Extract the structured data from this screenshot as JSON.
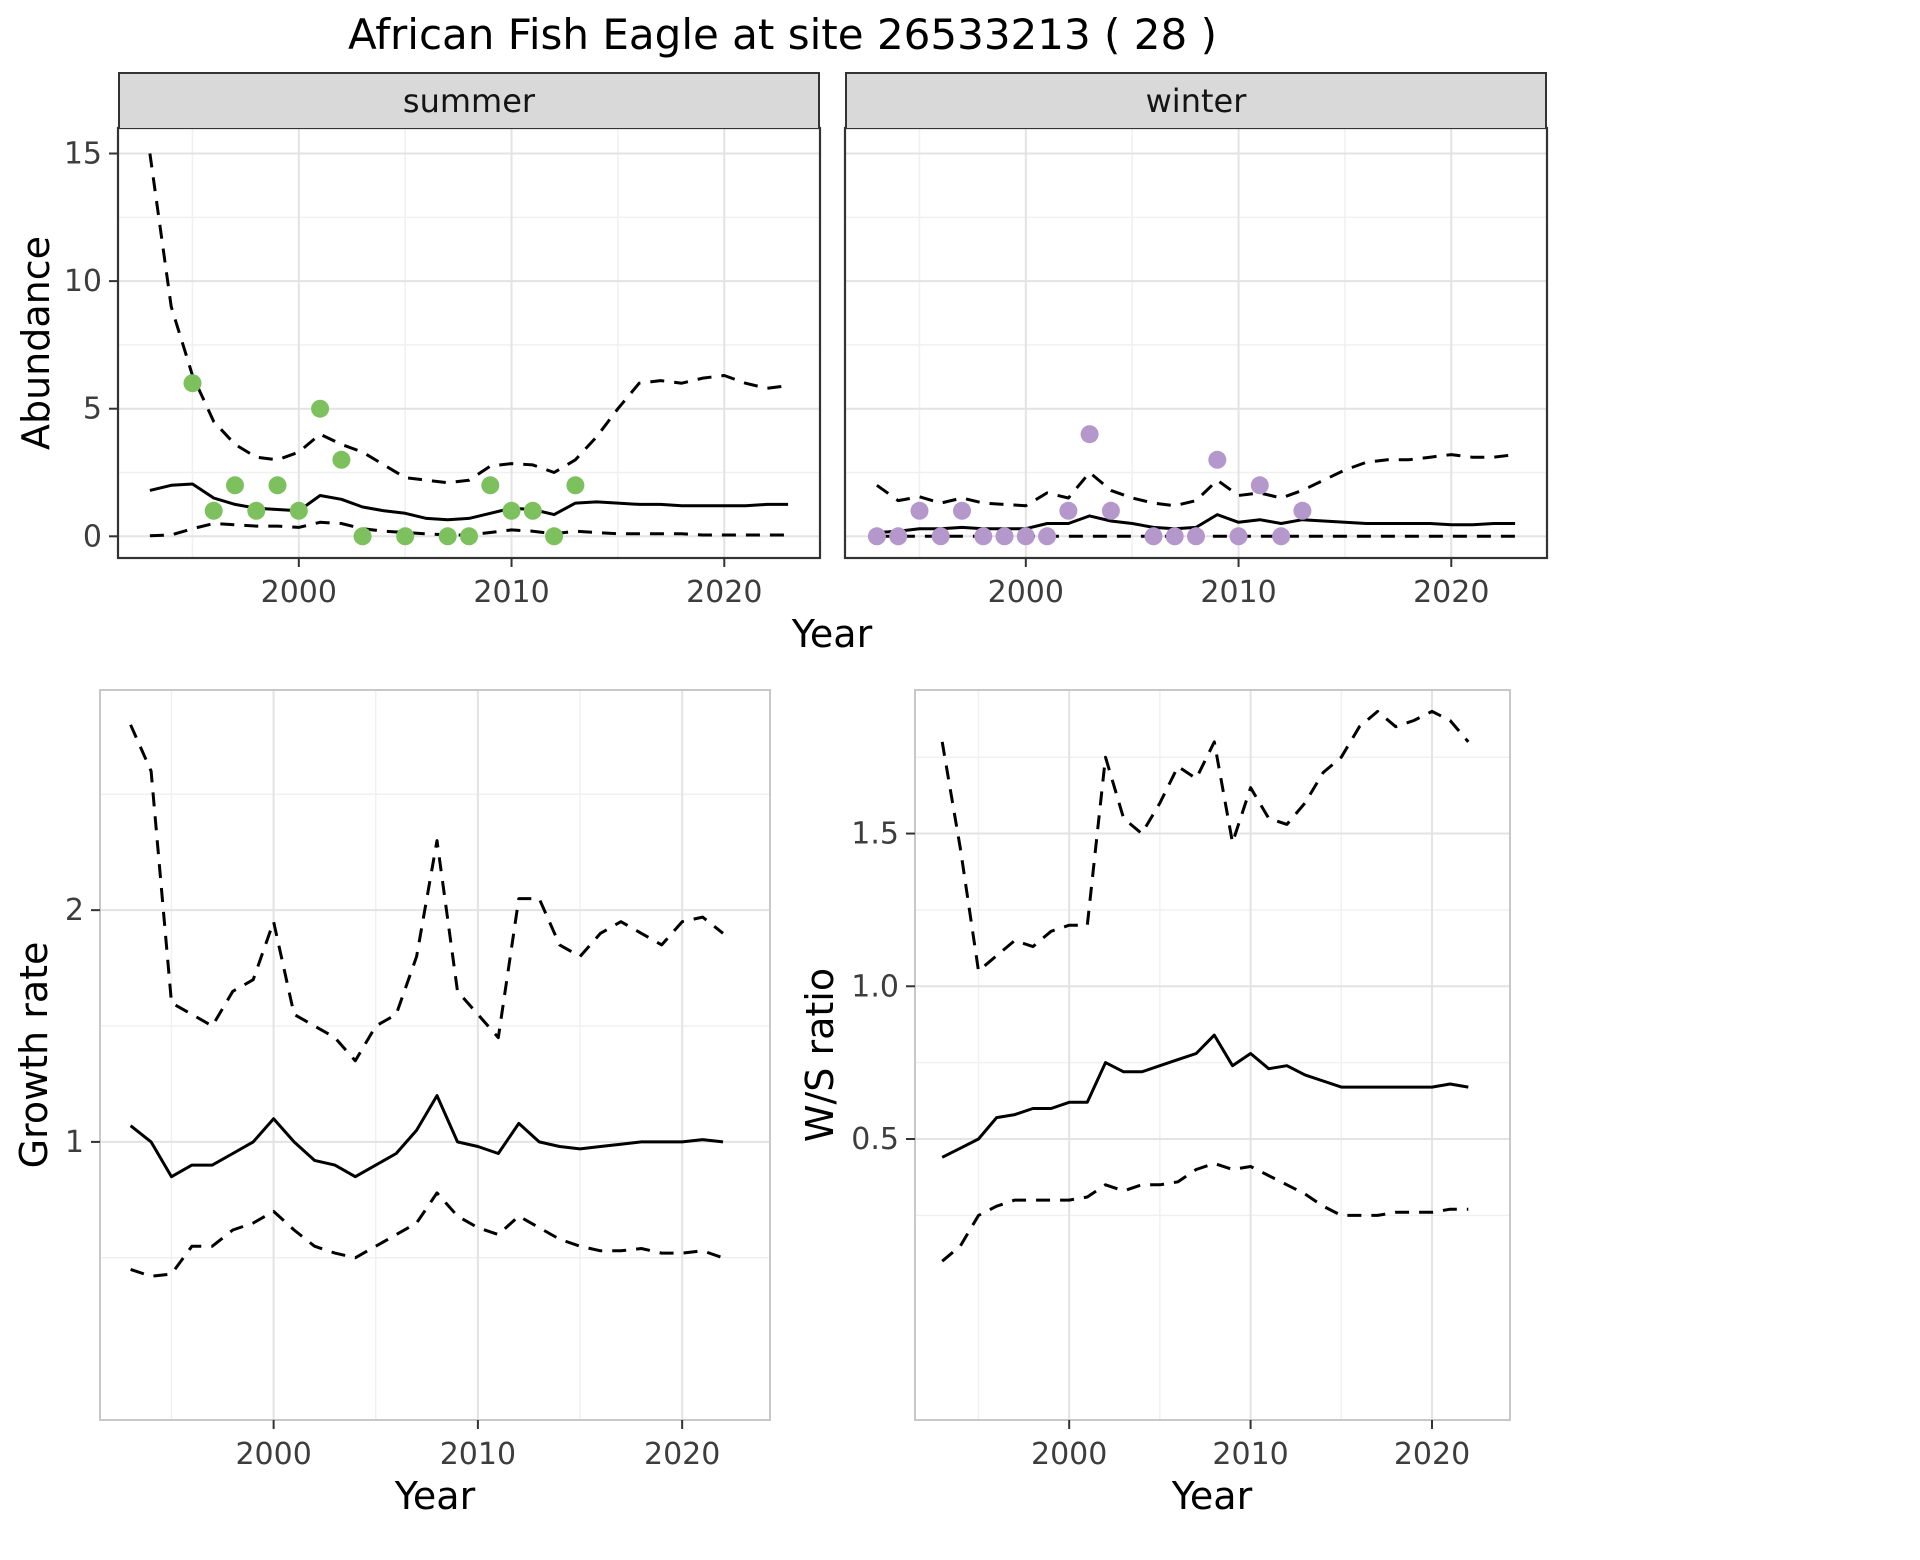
{
  "figure_title": "African Fish Eagle at site 26533213 ( 28 )",
  "colors": {
    "summer_points": "#7dc05e",
    "winter_points": "#b497cb",
    "fit_line": "#000000",
    "ci_line": "#000000",
    "strip_background": "#d9d9d9"
  },
  "chart_data": [
    {
      "id": "abundance-summer",
      "type": "line",
      "facet_label": "summer",
      "xlabel": "Year",
      "ylabel": "Abundance",
      "xlim": [
        1991.5,
        2024.5
      ],
      "ylim": [
        -0.85,
        16.0
      ],
      "xticks": {
        "values": [
          2000,
          2010,
          2020
        ],
        "labels": [
          "2000",
          "2010",
          "2020"
        ]
      },
      "yticks": {
        "values": [
          0,
          5,
          10,
          15
        ],
        "labels": [
          "0",
          "5",
          "10",
          "15"
        ]
      },
      "series": [
        {
          "name": "upper-ci",
          "style": "dashed",
          "color": "#000000",
          "x": [
            1993,
            1994,
            1995,
            1996,
            1997,
            1998,
            1999,
            2000,
            2001,
            2002,
            2003,
            2004,
            2005,
            2006,
            2007,
            2008,
            2009,
            2010,
            2011,
            2012,
            2013,
            2014,
            2015,
            2016,
            2017,
            2018,
            2019,
            2020,
            2021,
            2022,
            2023
          ],
          "y": [
            15.0,
            9.0,
            6.3,
            4.5,
            3.6,
            3.1,
            3.0,
            3.3,
            4.0,
            3.6,
            3.3,
            2.8,
            2.3,
            2.2,
            2.1,
            2.2,
            2.75,
            2.85,
            2.8,
            2.5,
            3.0,
            3.9,
            5.0,
            6.0,
            6.1,
            6.0,
            6.2,
            6.3,
            6.0,
            5.8,
            5.9
          ]
        },
        {
          "name": "lower-ci",
          "style": "dashed",
          "color": "#000000",
          "x": [
            1993,
            1994,
            1995,
            1996,
            1997,
            1998,
            1999,
            2000,
            2001,
            2002,
            2003,
            2004,
            2005,
            2006,
            2007,
            2008,
            2009,
            2010,
            2011,
            2012,
            2013,
            2014,
            2015,
            2016,
            2017,
            2018,
            2019,
            2020,
            2021,
            2022,
            2023
          ],
          "y": [
            0.02,
            0.05,
            0.3,
            0.5,
            0.45,
            0.4,
            0.4,
            0.35,
            0.55,
            0.5,
            0.3,
            0.2,
            0.15,
            0.1,
            0.05,
            0.05,
            0.15,
            0.25,
            0.2,
            0.1,
            0.2,
            0.15,
            0.1,
            0.1,
            0.1,
            0.1,
            0.05,
            0.05,
            0.05,
            0.05,
            0.05
          ]
        },
        {
          "name": "fit",
          "style": "solid",
          "color": "#000000",
          "x": [
            1993,
            1994,
            1995,
            1996,
            1997,
            1998,
            1999,
            2000,
            2001,
            2002,
            2003,
            2004,
            2005,
            2006,
            2007,
            2008,
            2009,
            2010,
            2011,
            2012,
            2013,
            2014,
            2015,
            2016,
            2017,
            2018,
            2019,
            2020,
            2021,
            2022,
            2023
          ],
          "y": [
            1.8,
            2.0,
            2.05,
            1.5,
            1.25,
            1.1,
            1.05,
            1.0,
            1.6,
            1.45,
            1.15,
            1.0,
            0.9,
            0.7,
            0.65,
            0.7,
            0.9,
            1.1,
            1.05,
            0.85,
            1.3,
            1.35,
            1.3,
            1.25,
            1.25,
            1.2,
            1.2,
            1.2,
            1.2,
            1.25,
            1.25
          ]
        },
        {
          "name": "observations",
          "style": "points",
          "color": "#7dc05e",
          "x": [
            1995,
            1996,
            1997,
            1998,
            1999,
            2000,
            2001,
            2002,
            2003,
            2005,
            2007,
            2008,
            2009,
            2010,
            2011,
            2012,
            2013
          ],
          "y": [
            6,
            1,
            2,
            1,
            2,
            1,
            5,
            3,
            0,
            0,
            0,
            0,
            2,
            1,
            1,
            0,
            2
          ]
        }
      ]
    },
    {
      "id": "abundance-winter",
      "type": "line",
      "facet_label": "winter",
      "xlabel": "Year",
      "ylabel": "Abundance",
      "xlim": [
        1991.5,
        2024.5
      ],
      "ylim": [
        -0.85,
        16.0
      ],
      "xticks": {
        "values": [
          2000,
          2010,
          2020
        ],
        "labels": [
          "2000",
          "2010",
          "2020"
        ]
      },
      "yticks": {
        "values": [
          0,
          5,
          10,
          15
        ],
        "labels": [
          "0",
          "5",
          "10",
          "15"
        ]
      },
      "series": [
        {
          "name": "upper-ci",
          "style": "dashed",
          "color": "#000000",
          "x": [
            1993,
            1994,
            1995,
            1996,
            1997,
            1998,
            1999,
            2000,
            2001,
            2002,
            2003,
            2004,
            2005,
            2006,
            2007,
            2008,
            2009,
            2010,
            2011,
            2012,
            2013,
            2014,
            2015,
            2016,
            2017,
            2018,
            2019,
            2020,
            2021,
            2022,
            2023
          ],
          "y": [
            2.0,
            1.4,
            1.55,
            1.3,
            1.5,
            1.3,
            1.25,
            1.2,
            1.7,
            1.5,
            2.5,
            1.8,
            1.5,
            1.3,
            1.2,
            1.4,
            2.2,
            1.6,
            1.7,
            1.5,
            1.8,
            2.2,
            2.6,
            2.9,
            3.0,
            3.0,
            3.1,
            3.2,
            3.1,
            3.1,
            3.2
          ]
        },
        {
          "name": "lower-ci",
          "style": "dashed",
          "color": "#000000",
          "x": [
            1993,
            1994,
            1995,
            1996,
            1997,
            1998,
            1999,
            2000,
            2001,
            2002,
            2003,
            2004,
            2005,
            2006,
            2007,
            2008,
            2009,
            2010,
            2011,
            2012,
            2013,
            2014,
            2015,
            2016,
            2017,
            2018,
            2019,
            2020,
            2021,
            2022,
            2023
          ],
          "y": [
            0,
            0,
            0,
            0,
            0,
            0,
            0,
            0,
            0,
            0,
            0,
            0,
            0,
            0,
            0,
            0,
            0,
            0,
            0,
            0,
            0,
            0,
            0,
            0,
            0,
            0,
            0,
            0,
            0,
            0,
            0
          ]
        },
        {
          "name": "fit",
          "style": "solid",
          "color": "#000000",
          "x": [
            1993,
            1994,
            1995,
            1996,
            1997,
            1998,
            1999,
            2000,
            2001,
            2002,
            2003,
            2004,
            2005,
            2006,
            2007,
            2008,
            2009,
            2010,
            2011,
            2012,
            2013,
            2014,
            2015,
            2016,
            2017,
            2018,
            2019,
            2020,
            2021,
            2022,
            2023
          ],
          "y": [
            0.15,
            0.2,
            0.3,
            0.3,
            0.35,
            0.3,
            0.3,
            0.3,
            0.5,
            0.5,
            0.8,
            0.6,
            0.5,
            0.35,
            0.3,
            0.35,
            0.85,
            0.55,
            0.65,
            0.5,
            0.65,
            0.6,
            0.55,
            0.5,
            0.5,
            0.5,
            0.5,
            0.45,
            0.45,
            0.5,
            0.5
          ]
        },
        {
          "name": "observations",
          "style": "points",
          "color": "#b497cb",
          "x": [
            1993,
            1994,
            1995,
            1996,
            1997,
            1998,
            1999,
            2000,
            2001,
            2002,
            2003,
            2004,
            2006,
            2007,
            2008,
            2009,
            2010,
            2011,
            2012,
            2013
          ],
          "y": [
            0,
            0,
            1,
            0,
            1,
            0,
            0,
            0,
            0,
            1,
            4,
            1,
            0,
            0,
            0,
            3,
            0,
            2,
            0,
            1
          ]
        }
      ]
    },
    {
      "id": "growth-rate",
      "type": "line",
      "facet_label": "",
      "xlabel": "Year",
      "ylabel": "Growth rate",
      "xlim": [
        1991.5,
        2024.3
      ],
      "ylim": [
        -0.2,
        2.95
      ],
      "xticks": {
        "values": [
          2000,
          2010,
          2020
        ],
        "labels": [
          "2000",
          "2010",
          "2020"
        ]
      },
      "yticks": {
        "values": [
          1,
          2
        ],
        "labels": [
          "1",
          "2"
        ]
      },
      "series": [
        {
          "name": "upper-ci",
          "style": "dashed",
          "color": "#000000",
          "x": [
            1993,
            1994,
            1995,
            1996,
            1997,
            1998,
            1999,
            2000,
            2001,
            2002,
            2003,
            2004,
            2005,
            2006,
            2007,
            2008,
            2009,
            2010,
            2011,
            2012,
            2013,
            2014,
            2015,
            2016,
            2017,
            2018,
            2019,
            2020,
            2021,
            2022
          ],
          "y": [
            2.8,
            2.6,
            1.6,
            1.55,
            1.5,
            1.65,
            1.7,
            1.95,
            1.55,
            1.5,
            1.45,
            1.35,
            1.5,
            1.55,
            1.8,
            2.3,
            1.65,
            1.55,
            1.45,
            2.05,
            2.05,
            1.85,
            1.8,
            1.9,
            1.95,
            1.9,
            1.85,
            1.95,
            1.97,
            1.9
          ]
        },
        {
          "name": "lower-ci",
          "style": "dashed",
          "color": "#000000",
          "x": [
            1993,
            1994,
            1995,
            1996,
            1997,
            1998,
            1999,
            2000,
            2001,
            2002,
            2003,
            2004,
            2005,
            2006,
            2007,
            2008,
            2009,
            2010,
            2011,
            2012,
            2013,
            2014,
            2015,
            2016,
            2017,
            2018,
            2019,
            2020,
            2021,
            2022
          ],
          "y": [
            0.45,
            0.42,
            0.43,
            0.55,
            0.55,
            0.62,
            0.65,
            0.7,
            0.62,
            0.55,
            0.52,
            0.5,
            0.55,
            0.6,
            0.65,
            0.78,
            0.68,
            0.63,
            0.6,
            0.68,
            0.63,
            0.58,
            0.55,
            0.53,
            0.53,
            0.54,
            0.52,
            0.52,
            0.53,
            0.5
          ]
        },
        {
          "name": "fit",
          "style": "solid",
          "color": "#000000",
          "x": [
            1993,
            1994,
            1995,
            1996,
            1997,
            1998,
            1999,
            2000,
            2001,
            2002,
            2003,
            2004,
            2005,
            2006,
            2007,
            2008,
            2009,
            2010,
            2011,
            2012,
            2013,
            2014,
            2015,
            2016,
            2017,
            2018,
            2019,
            2020,
            2021,
            2022
          ],
          "y": [
            1.07,
            1.0,
            0.85,
            0.9,
            0.9,
            0.95,
            1.0,
            1.1,
            1.0,
            0.92,
            0.9,
            0.85,
            0.9,
            0.95,
            1.05,
            1.2,
            1.0,
            0.98,
            0.95,
            1.08,
            1.0,
            0.98,
            0.97,
            0.98,
            0.99,
            1.0,
            1.0,
            1.0,
            1.01,
            1.0
          ]
        }
      ]
    },
    {
      "id": "ws-ratio",
      "type": "line",
      "facet_label": "",
      "xlabel": "Year",
      "ylabel": "W/S ratio",
      "xlim": [
        1991.5,
        2024.3
      ],
      "ylim": [
        -0.42,
        1.97
      ],
      "xticks": {
        "values": [
          2000,
          2010,
          2020
        ],
        "labels": [
          "2000",
          "2010",
          "2020"
        ]
      },
      "yticks": {
        "values": [
          0.5,
          1.0,
          1.5
        ],
        "labels": [
          "0.5",
          "1.0",
          "1.5"
        ]
      },
      "series": [
        {
          "name": "upper-ci",
          "style": "dashed",
          "color": "#000000",
          "x": [
            1993,
            1994,
            1995,
            1996,
            1997,
            1998,
            1999,
            2000,
            2001,
            2002,
            2003,
            2004,
            2005,
            2006,
            2007,
            2008,
            2009,
            2010,
            2011,
            2012,
            2013,
            2014,
            2015,
            2016,
            2017,
            2018,
            2019,
            2020,
            2021,
            2022
          ],
          "y": [
            1.8,
            1.45,
            1.05,
            1.1,
            1.15,
            1.13,
            1.18,
            1.2,
            1.2,
            1.75,
            1.55,
            1.5,
            1.6,
            1.72,
            1.68,
            1.8,
            1.47,
            1.65,
            1.55,
            1.53,
            1.6,
            1.7,
            1.75,
            1.85,
            1.9,
            1.85,
            1.87,
            1.9,
            1.87,
            1.8
          ]
        },
        {
          "name": "lower-ci",
          "style": "dashed",
          "color": "#000000",
          "x": [
            1993,
            1994,
            1995,
            1996,
            1997,
            1998,
            1999,
            2000,
            2001,
            2002,
            2003,
            2004,
            2005,
            2006,
            2007,
            2008,
            2009,
            2010,
            2011,
            2012,
            2013,
            2014,
            2015,
            2016,
            2017,
            2018,
            2019,
            2020,
            2021,
            2022
          ],
          "y": [
            0.1,
            0.15,
            0.25,
            0.28,
            0.3,
            0.3,
            0.3,
            0.3,
            0.31,
            0.35,
            0.33,
            0.35,
            0.35,
            0.36,
            0.4,
            0.42,
            0.4,
            0.41,
            0.38,
            0.35,
            0.32,
            0.28,
            0.25,
            0.25,
            0.25,
            0.26,
            0.26,
            0.26,
            0.27,
            0.27
          ]
        },
        {
          "name": "fit",
          "style": "solid",
          "color": "#000000",
          "x": [
            1993,
            1994,
            1995,
            1996,
            1997,
            1998,
            1999,
            2000,
            2001,
            2002,
            2003,
            2004,
            2005,
            2006,
            2007,
            2008,
            2009,
            2010,
            2011,
            2012,
            2013,
            2014,
            2015,
            2016,
            2017,
            2018,
            2019,
            2020,
            2021,
            2022
          ],
          "y": [
            0.44,
            0.47,
            0.5,
            0.57,
            0.58,
            0.6,
            0.6,
            0.62,
            0.62,
            0.75,
            0.72,
            0.72,
            0.74,
            0.76,
            0.78,
            0.84,
            0.74,
            0.78,
            0.73,
            0.74,
            0.71,
            0.69,
            0.67,
            0.67,
            0.67,
            0.67,
            0.67,
            0.67,
            0.68,
            0.67
          ]
        }
      ]
    }
  ]
}
